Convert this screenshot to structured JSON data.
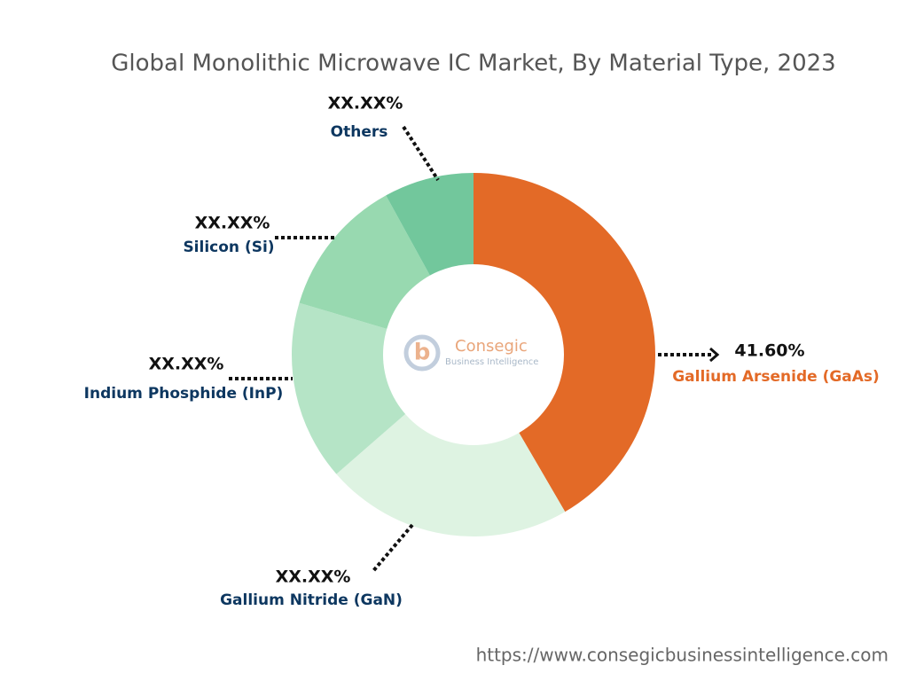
{
  "chart_data": {
    "type": "donut",
    "title": "Global Monolithic Microwave IC Market, By Material Type, 2023",
    "categories": [
      "Gallium Arsenide (GaAs)",
      "Gallium Nitride (GaN)",
      "Indium Phosphide (InP)",
      "Silicon (Si)",
      "Others"
    ],
    "values": [
      41.6,
      22,
      16,
      12.4,
      8
    ],
    "value_labels": [
      "41.60%",
      "XX.XX%",
      "XX.XX%",
      "XX.XX%",
      "XX.XX%"
    ],
    "colors": [
      "#e36a27",
      "#def3e2",
      "#b5e4c6",
      "#98d9b0",
      "#72c79c"
    ],
    "watermark": {
      "name": "Consegic",
      "tagline": "Business Intelligence"
    },
    "source_url": "https://www.consegicbusinessintelligence.com"
  }
}
